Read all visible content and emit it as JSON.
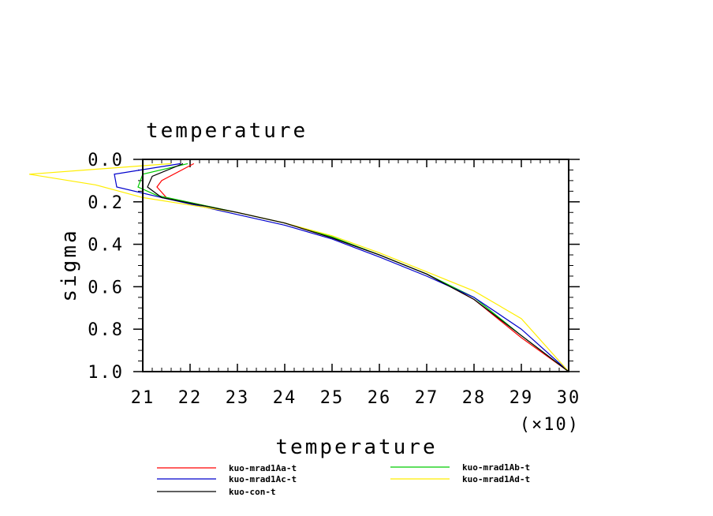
{
  "chart_data": {
    "type": "line",
    "title": "temperature",
    "xlabel": "temperature",
    "ylabel": "sigma",
    "x_multiplier_label": "(×10)",
    "xlim": [
      21,
      30
    ],
    "ylim": [
      0.0,
      1.0
    ],
    "y_inverted": true,
    "xticks": [
      "21",
      "22",
      "23",
      "24",
      "25",
      "26",
      "27",
      "28",
      "29",
      "30"
    ],
    "yticks": [
      "0.0",
      "0.2",
      "0.4",
      "0.6",
      "0.8",
      "1.0"
    ],
    "grid": false,
    "legend_position": "bottom",
    "series": [
      {
        "name": "kuo-mrad1Aa-t",
        "color": "#ff0000",
        "points": [
          [
            22.08,
            0.02
          ],
          [
            21.4,
            0.1
          ],
          [
            21.3,
            0.13
          ],
          [
            21.5,
            0.18
          ],
          [
            23.0,
            0.25
          ],
          [
            24.0,
            0.3
          ],
          [
            25.0,
            0.37
          ],
          [
            26.0,
            0.45
          ],
          [
            27.0,
            0.54
          ],
          [
            28.0,
            0.66
          ],
          [
            29.0,
            0.84
          ],
          [
            30.0,
            1.0
          ]
        ]
      },
      {
        "name": "kuo-mrad1Ab-t",
        "color": "#00cc00",
        "points": [
          [
            21.95,
            0.02
          ],
          [
            21.0,
            0.07
          ],
          [
            20.9,
            0.13
          ],
          [
            21.3,
            0.17
          ],
          [
            23.0,
            0.25
          ],
          [
            24.0,
            0.3
          ],
          [
            25.0,
            0.365
          ],
          [
            26.0,
            0.45
          ],
          [
            27.0,
            0.54
          ],
          [
            28.0,
            0.65
          ],
          [
            29.0,
            0.83
          ],
          [
            30.0,
            1.0
          ]
        ]
      },
      {
        "name": "kuo-mrad1Ac-t",
        "color": "#0000cc",
        "points": [
          [
            21.8,
            0.02
          ],
          [
            20.4,
            0.07
          ],
          [
            20.45,
            0.13
          ],
          [
            21.4,
            0.18
          ],
          [
            23.0,
            0.26
          ],
          [
            24.0,
            0.31
          ],
          [
            25.0,
            0.375
          ],
          [
            26.0,
            0.46
          ],
          [
            27.0,
            0.55
          ],
          [
            28.0,
            0.65
          ],
          [
            29.0,
            0.8
          ],
          [
            30.0,
            1.0
          ]
        ]
      },
      {
        "name": "kuo-mrad1Ad-t",
        "color": "#ffee00",
        "points": [
          [
            21.6,
            0.02
          ],
          [
            18.6,
            0.07
          ],
          [
            20.0,
            0.12
          ],
          [
            21.0,
            0.18
          ],
          [
            23.0,
            0.25
          ],
          [
            24.0,
            0.3
          ],
          [
            25.0,
            0.36
          ],
          [
            26.0,
            0.44
          ],
          [
            27.0,
            0.53
          ],
          [
            28.0,
            0.62
          ],
          [
            29.0,
            0.75
          ],
          [
            30.0,
            1.0
          ]
        ]
      },
      {
        "name": "kuo-con-t",
        "color": "#000000",
        "points": [
          [
            21.85,
            0.02
          ],
          [
            21.2,
            0.08
          ],
          [
            21.1,
            0.13
          ],
          [
            21.4,
            0.18
          ],
          [
            23.0,
            0.25
          ],
          [
            24.0,
            0.3
          ],
          [
            25.0,
            0.37
          ],
          [
            26.0,
            0.45
          ],
          [
            27.0,
            0.54
          ],
          [
            28.0,
            0.66
          ],
          [
            29.0,
            0.83
          ],
          [
            30.0,
            1.0
          ]
        ]
      }
    ]
  }
}
